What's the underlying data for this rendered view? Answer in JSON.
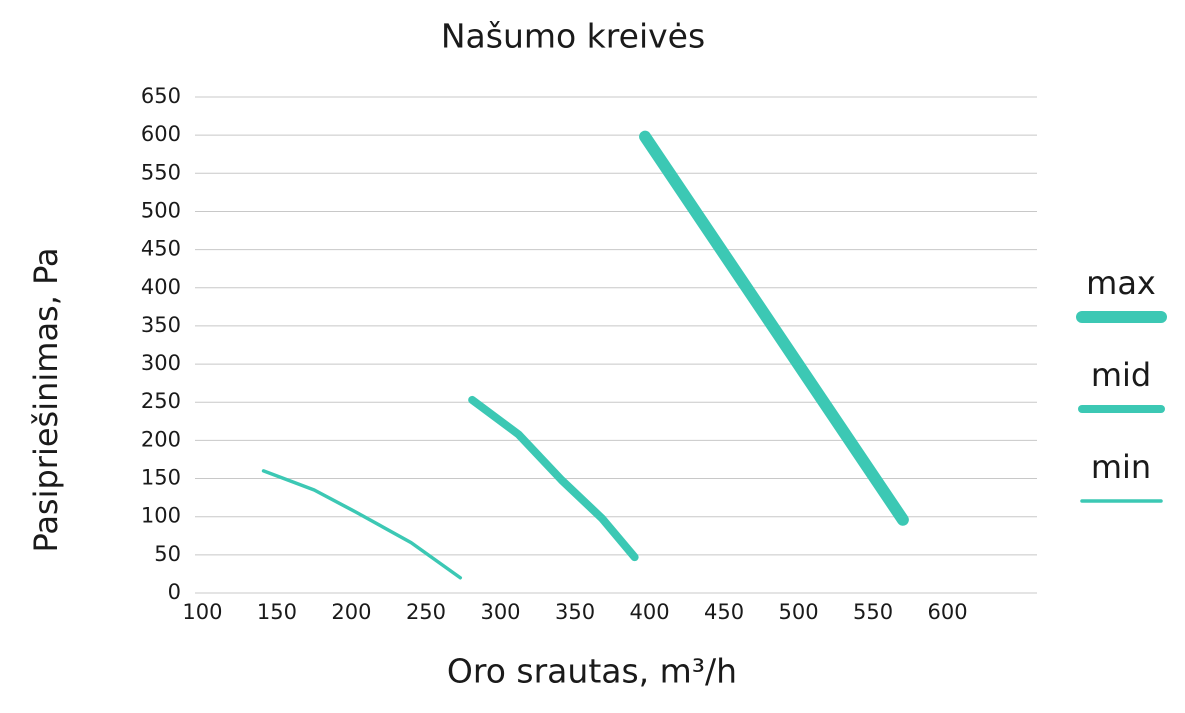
{
  "chart_data": {
    "type": "line",
    "title": "Našumo kreivės",
    "x_label": "Oro srautas, m³/h",
    "y_label": "Pasipriešinimas, Pa",
    "xlim": [
      95,
      660
    ],
    "xticks": [
      100,
      150,
      200,
      250,
      300,
      350,
      400,
      450,
      500,
      550,
      600
    ],
    "ylim": [
      0,
      650
    ],
    "yticks": [
      0,
      50,
      100,
      150,
      200,
      250,
      300,
      350,
      400,
      450,
      500,
      550,
      600,
      650
    ],
    "grid": true,
    "legend": "right",
    "series": [
      {
        "name": "max",
        "color": "#3cc8b4",
        "width": 12,
        "x": [
          397,
          570
        ],
        "values": [
          598,
          96
        ]
      },
      {
        "name": "mid",
        "color": "#3cc8b4",
        "width": 8,
        "x": [
          281,
          312,
          341,
          368,
          390
        ],
        "values": [
          253,
          208,
          148,
          98,
          47
        ]
      },
      {
        "name": "min",
        "color": "#3cc8b4",
        "width": 3.5,
        "x": [
          141,
          175,
          203,
          240,
          273
        ],
        "values": [
          160,
          135,
          106,
          66,
          20
        ]
      }
    ]
  }
}
